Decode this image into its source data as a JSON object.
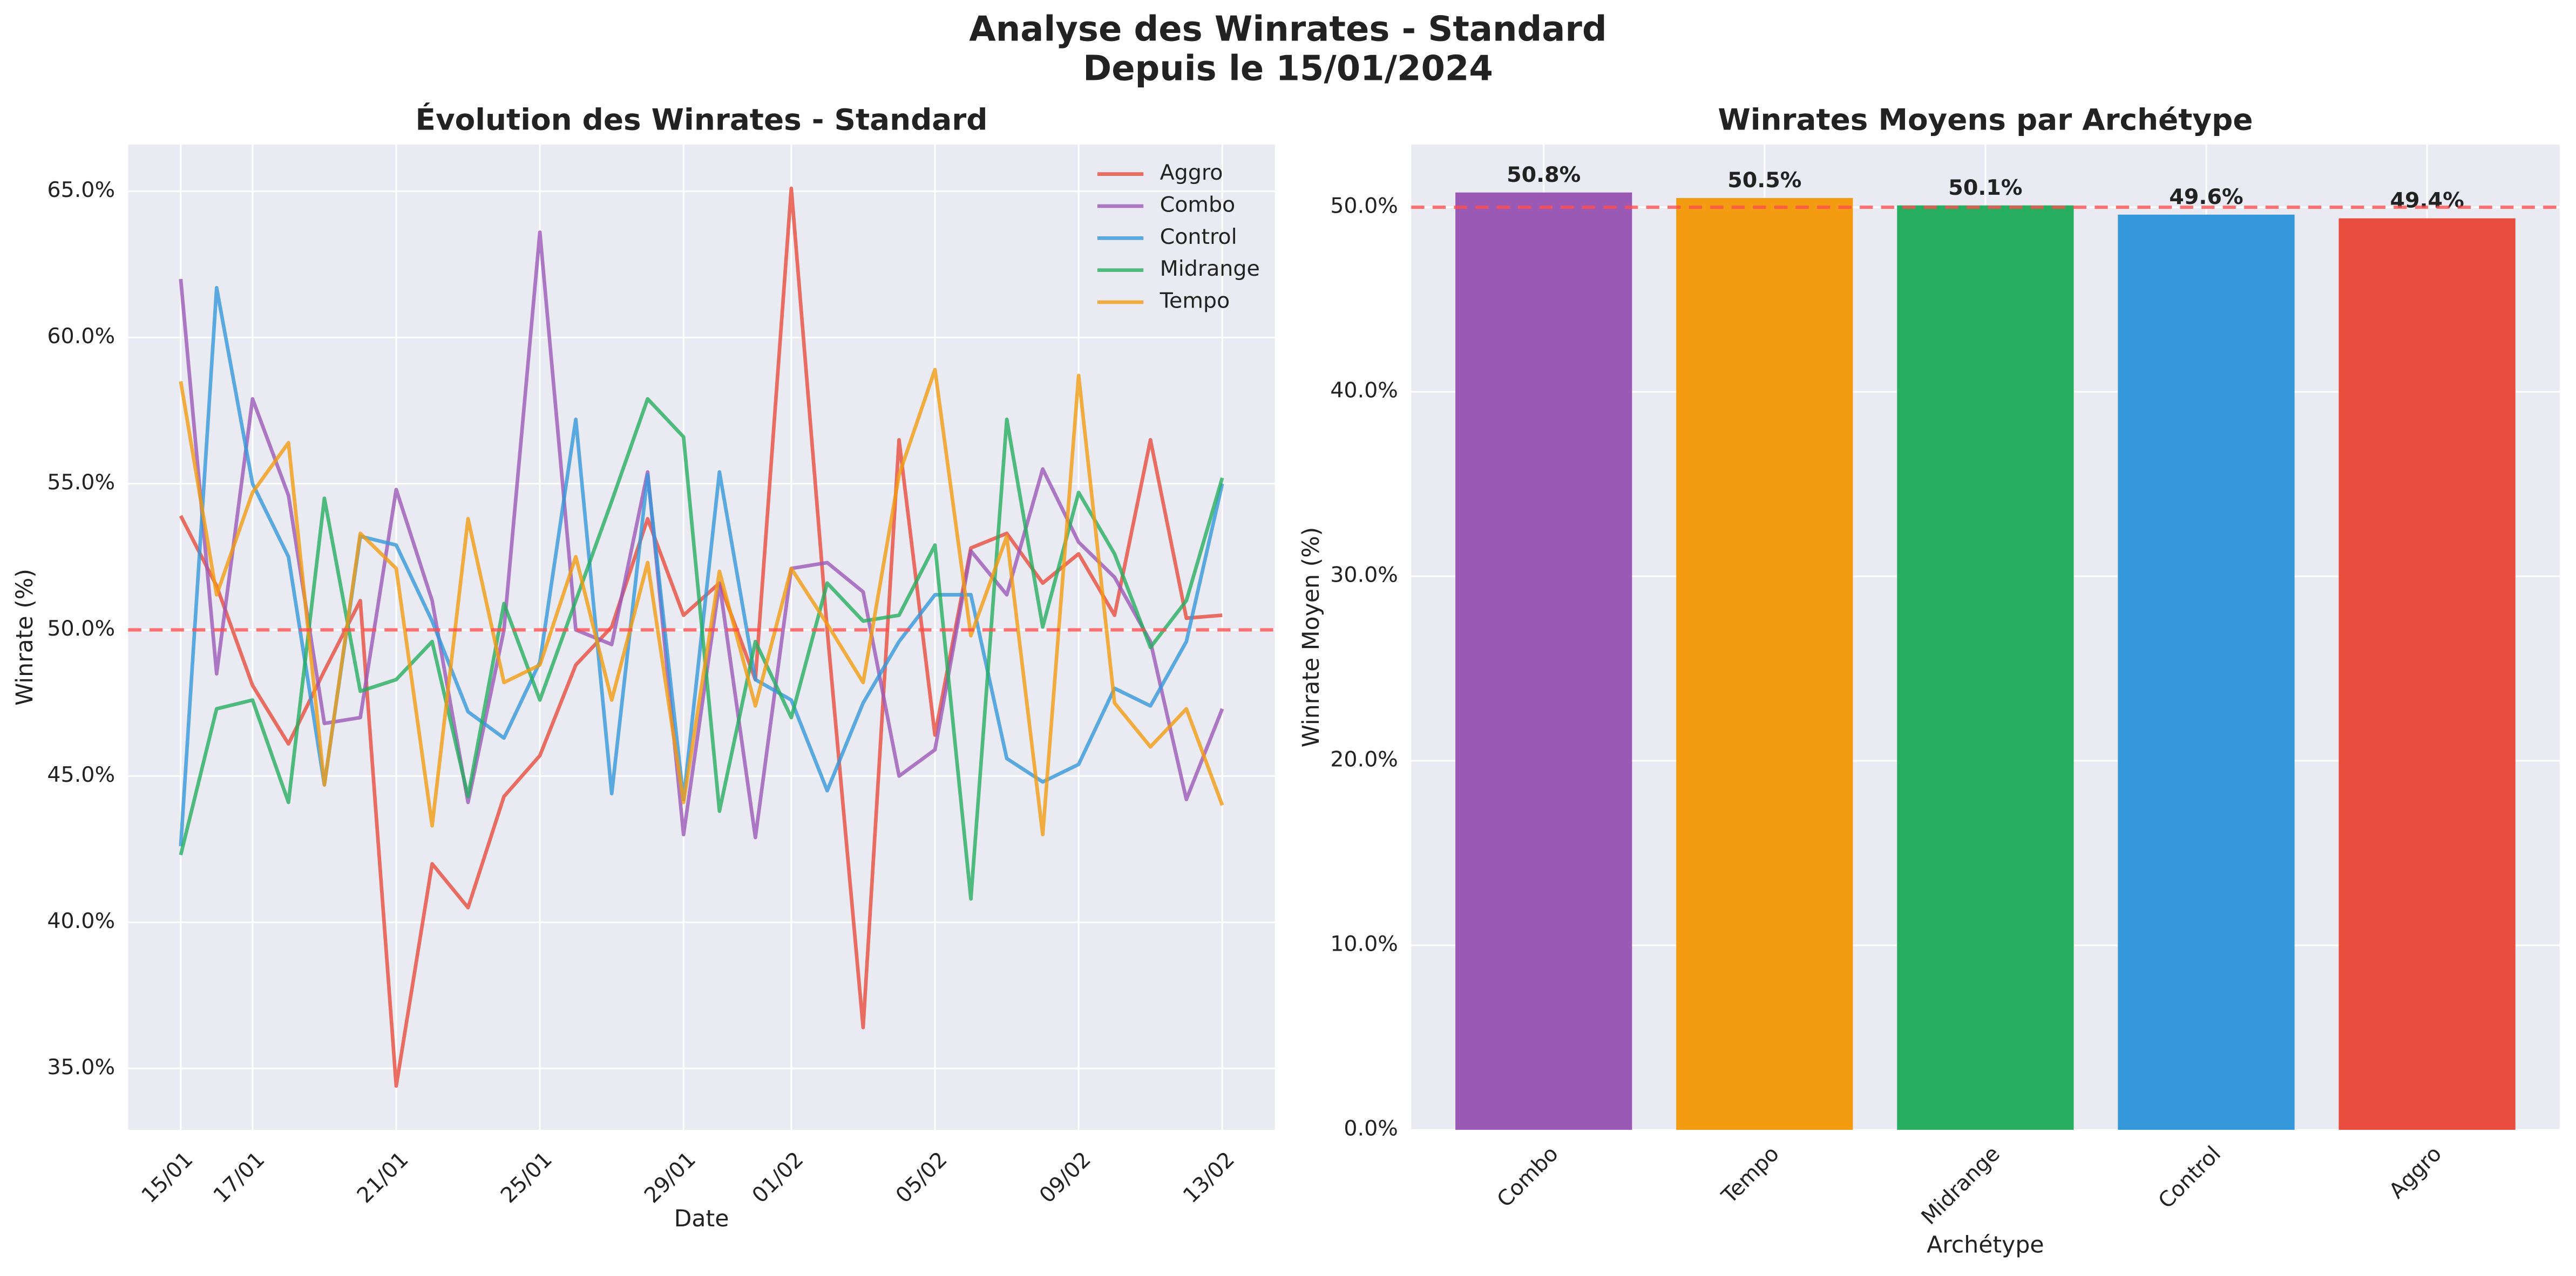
{
  "suptitle": [
    "Analyse des Winrates - Standard",
    "Depuis le 15/01/2024"
  ],
  "chart_data": [
    {
      "type": "line",
      "title": "Évolution des Winrates - Standard",
      "xlabel": "Date",
      "ylabel": "Winrate (%)",
      "categories": [
        "15/01",
        null,
        "17/01",
        null,
        null,
        null,
        "21/01",
        null,
        null,
        null,
        "25/01",
        null,
        null,
        null,
        "29/01",
        null,
        null,
        "01/02",
        null,
        null,
        null,
        "05/02",
        null,
        null,
        null,
        "09/02",
        null,
        null,
        null,
        "13/02"
      ],
      "series": [
        {
          "name": "Aggro",
          "color": "#e74c3c",
          "values": [
            53.9,
            51.5,
            48.1,
            46.1,
            48.6,
            51.0,
            34.4,
            42.0,
            40.5,
            44.3,
            45.7,
            48.8,
            50.1,
            53.8,
            50.5,
            51.6,
            48.3,
            65.1,
            50.0,
            36.4,
            56.5,
            46.4,
            52.8,
            53.3,
            51.6,
            52.6,
            50.5,
            56.5,
            50.4,
            50.5
          ]
        },
        {
          "name": "Combo",
          "color": "#9b59b6",
          "values": [
            62.0,
            48.5,
            57.9,
            54.6,
            46.8,
            47.0,
            54.8,
            51.0,
            44.1,
            50.0,
            63.6,
            50.0,
            49.5,
            55.4,
            43.0,
            51.6,
            42.9,
            52.1,
            52.3,
            51.3,
            45.0,
            45.9,
            52.7,
            51.2,
            55.5,
            53.0,
            51.8,
            49.6,
            44.2,
            47.3
          ]
        },
        {
          "name": "Control",
          "color": "#3498db",
          "values": [
            42.6,
            61.7,
            55.0,
            52.5,
            44.7,
            53.2,
            52.9,
            50.3,
            47.2,
            46.3,
            48.9,
            57.2,
            44.4,
            55.3,
            44.2,
            55.4,
            48.3,
            47.6,
            44.5,
            47.5,
            49.6,
            51.2,
            51.2,
            45.6,
            44.8,
            45.4,
            48.0,
            47.4,
            49.6,
            55.0
          ]
        },
        {
          "name": "Midrange",
          "color": "#27ae60",
          "values": [
            42.3,
            47.3,
            47.6,
            44.1,
            54.5,
            47.9,
            48.3,
            49.6,
            44.3,
            50.9,
            47.6,
            51.0,
            54.4,
            57.9,
            56.6,
            43.8,
            49.6,
            47.0,
            51.6,
            50.3,
            50.5,
            52.9,
            40.8,
            57.2,
            50.1,
            54.7,
            52.6,
            49.4,
            51.0,
            55.2
          ]
        },
        {
          "name": "Tempo",
          "color": "#f39c12",
          "values": [
            58.5,
            51.2,
            54.7,
            56.4,
            44.7,
            53.3,
            52.1,
            43.3,
            53.8,
            48.2,
            48.8,
            52.5,
            47.6,
            52.3,
            44.1,
            52.0,
            47.4,
            52.1,
            50.2,
            48.2,
            55.3,
            58.9,
            49.8,
            53.2,
            43.0,
            58.7,
            47.5,
            46.0,
            47.3,
            44.0
          ]
        }
      ],
      "ylim": [
        32.9,
        66.6
      ],
      "yticks": [
        {
          "value": 35,
          "label": "35.0%"
        },
        {
          "value": 40,
          "label": "40.0%"
        },
        {
          "value": 45,
          "label": "45.0%"
        },
        {
          "value": 50,
          "label": "50.0%"
        },
        {
          "value": 55,
          "label": "55.0%"
        },
        {
          "value": 60,
          "label": "60.0%"
        },
        {
          "value": 65,
          "label": "65.0%"
        }
      ],
      "reference_line": 50,
      "reference_color": "#ff4d4d",
      "grid": true,
      "legend": "upper right"
    },
    {
      "type": "bar",
      "title": "Winrates Moyens par Archétype",
      "xlabel": "Archétype",
      "ylabel": "Winrate Moyen (%)",
      "categories": [
        "Combo",
        "Tempo",
        "Midrange",
        "Control",
        "Aggro"
      ],
      "values": [
        50.8,
        50.5,
        50.1,
        49.6,
        49.4
      ],
      "value_labels": [
        "50.8%",
        "50.5%",
        "50.1%",
        "49.6%",
        "49.4%"
      ],
      "colors": [
        "#9b59b6",
        "#f39c12",
        "#27ae60",
        "#3498db",
        "#e74c3c"
      ],
      "ylim": [
        0,
        53.4
      ],
      "yticks": [
        {
          "value": 0,
          "label": "0.0%"
        },
        {
          "value": 10,
          "label": "10.0%"
        },
        {
          "value": 20,
          "label": "20.0%"
        },
        {
          "value": 30,
          "label": "30.0%"
        },
        {
          "value": 40,
          "label": "40.0%"
        },
        {
          "value": 50,
          "label": "50.0%"
        }
      ],
      "reference_line": 50,
      "reference_color": "#ff4d4d",
      "grid": true
    }
  ]
}
